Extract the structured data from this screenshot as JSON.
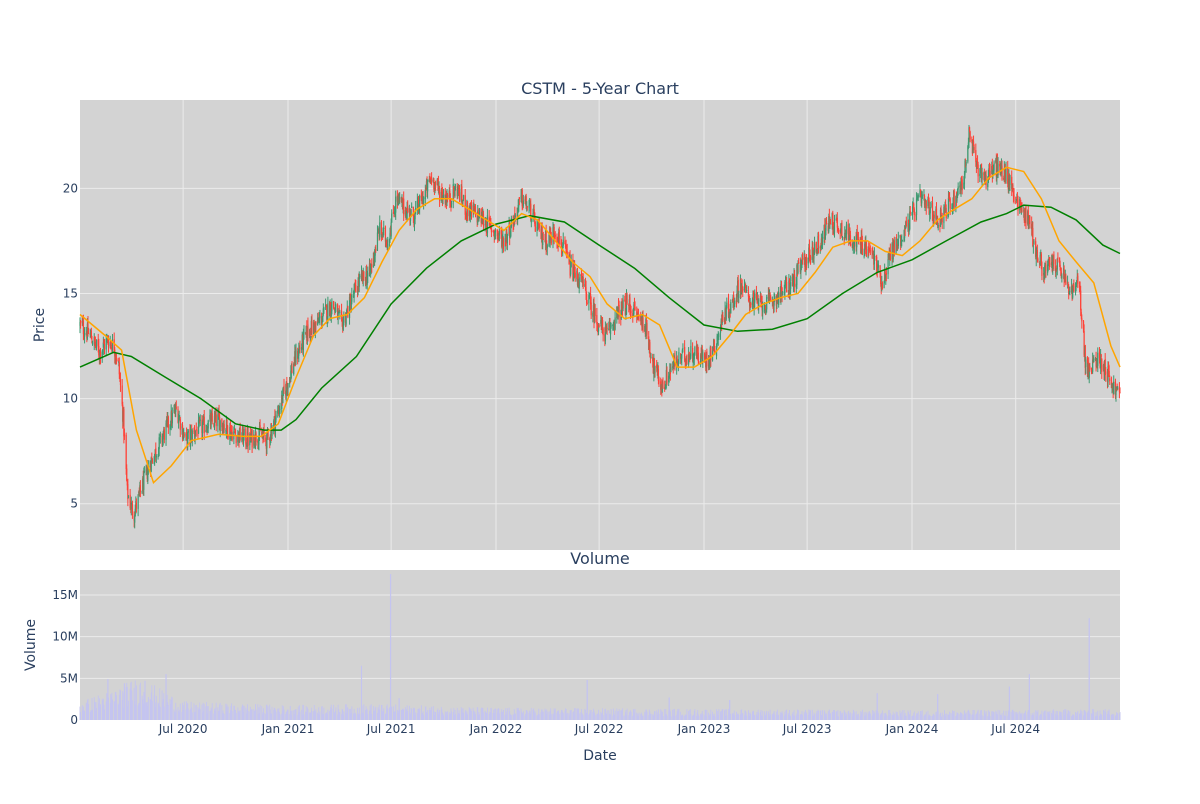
{
  "chart_data": [
    {
      "type": "candlestick",
      "title": "CSTM - 5-Year Chart",
      "ylabel": "Price",
      "ylim": [
        2.8,
        24.2
      ],
      "xlim": [
        "2020-01-02",
        "2024-12-31"
      ],
      "yticks": [
        5,
        10,
        15,
        20
      ],
      "xticks": [
        "2020-07-01",
        "2021-01-01",
        "2021-07-01",
        "2022-01-01",
        "2022-07-01",
        "2023-01-01",
        "2023-07-01",
        "2024-01-01",
        "2024-07-01"
      ],
      "grid": true,
      "colors": {
        "up": "#3d9970",
        "down": "#ff4136",
        "ma_short": "#ffa500",
        "ma_long": "#008000",
        "plot_bg": "#d3d3d3",
        "grid": "#ebebeb"
      },
      "price_path": {
        "x": [
          "2020-01-02",
          "2020-01-20",
          "2020-02-05",
          "2020-02-20",
          "2020-03-02",
          "2020-03-10",
          "2020-03-18",
          "2020-03-25",
          "2020-04-05",
          "2020-04-20",
          "2020-05-05",
          "2020-05-20",
          "2020-06-05",
          "2020-06-20",
          "2020-07-05",
          "2020-07-25",
          "2020-08-15",
          "2020-09-01",
          "2020-09-20",
          "2020-10-10",
          "2020-10-25",
          "2020-11-10",
          "2020-11-25",
          "2020-12-10",
          "2020-12-28",
          "2021-01-15",
          "2021-02-05",
          "2021-02-20",
          "2021-03-05",
          "2021-03-20",
          "2021-04-05",
          "2021-04-20",
          "2021-05-05",
          "2021-05-25",
          "2021-06-10",
          "2021-06-25",
          "2021-07-10",
          "2021-07-25",
          "2021-08-10",
          "2021-08-25",
          "2021-09-10",
          "2021-09-25",
          "2021-10-10",
          "2021-10-25",
          "2021-11-10",
          "2021-11-25",
          "2021-12-10",
          "2021-12-28",
          "2022-01-15",
          "2022-02-01",
          "2022-02-15",
          "2022-03-01",
          "2022-03-15",
          "2022-04-01",
          "2022-04-15",
          "2022-05-01",
          "2022-05-15",
          "2022-06-01",
          "2022-06-15",
          "2022-07-01",
          "2022-07-15",
          "2022-08-01",
          "2022-08-20",
          "2022-09-05",
          "2022-09-20",
          "2022-10-05",
          "2022-10-20",
          "2022-11-05",
          "2022-11-25",
          "2022-12-15",
          "2023-01-05",
          "2023-01-20",
          "2023-02-05",
          "2023-02-20",
          "2023-03-05",
          "2023-03-20",
          "2023-04-05",
          "2023-04-25",
          "2023-05-15",
          "2023-06-05",
          "2023-06-25",
          "2023-07-10",
          "2023-07-25",
          "2023-08-10",
          "2023-08-25",
          "2023-09-10",
          "2023-09-25",
          "2023-10-10",
          "2023-10-25",
          "2023-11-10",
          "2023-11-25",
          "2023-12-10",
          "2023-12-28",
          "2024-01-15",
          "2024-02-01",
          "2024-02-15",
          "2024-03-01",
          "2024-03-15",
          "2024-04-01",
          "2024-04-10",
          "2024-04-25",
          "2024-05-10",
          "2024-05-25",
          "2024-06-10",
          "2024-06-25",
          "2024-07-10",
          "2024-07-25",
          "2024-08-05",
          "2024-08-20",
          "2024-09-05",
          "2024-09-20",
          "2024-10-05",
          "2024-10-20",
          "2024-11-01",
          "2024-11-08",
          "2024-11-20",
          "2024-12-05",
          "2024-12-20",
          "2024-12-31"
        ],
        "y": [
          13.5,
          13.0,
          12.2,
          12.8,
          12.5,
          11.5,
          9.0,
          5.5,
          4.5,
          5.8,
          7.0,
          7.8,
          8.8,
          9.5,
          8.0,
          8.5,
          8.8,
          9.0,
          8.5,
          8.2,
          8.0,
          8.3,
          8.0,
          9.0,
          10.5,
          12.0,
          13.2,
          13.5,
          14.0,
          14.5,
          13.5,
          14.5,
          15.5,
          16.0,
          18.0,
          17.5,
          19.5,
          19.0,
          18.7,
          19.5,
          20.5,
          19.8,
          19.5,
          20.0,
          19.0,
          18.8,
          18.5,
          18.0,
          17.5,
          18.5,
          19.5,
          19.0,
          18.0,
          17.5,
          18.0,
          17.0,
          16.0,
          15.5,
          14.5,
          13.5,
          13.0,
          14.0,
          14.5,
          14.0,
          13.5,
          11.5,
          10.5,
          11.5,
          12.0,
          12.2,
          11.8,
          12.5,
          14.0,
          14.5,
          15.5,
          14.8,
          14.5,
          14.5,
          15.0,
          15.5,
          16.5,
          17.0,
          17.5,
          18.5,
          18.2,
          17.8,
          17.5,
          17.2,
          16.8,
          15.5,
          17.0,
          17.5,
          18.5,
          19.5,
          19.0,
          18.5,
          19.0,
          19.5,
          20.5,
          22.5,
          21.0,
          20.5,
          21.0,
          20.8,
          20.0,
          19.0,
          18.5,
          17.0,
          16.0,
          16.5,
          16.0,
          15.0,
          15.5,
          11.5,
          11.2,
          12.0,
          11.5,
          10.5,
          10.2
        ]
      },
      "ma_short": {
        "name": "",
        "x": [
          "2020-01-02",
          "2020-02-15",
          "2020-03-15",
          "2020-04-10",
          "2020-05-10",
          "2020-06-10",
          "2020-07-15",
          "2020-09-01",
          "2020-10-15",
          "2020-11-15",
          "2020-12-15",
          "2021-01-15",
          "2021-02-15",
          "2021-03-15",
          "2021-04-15",
          "2021-05-15",
          "2021-06-15",
          "2021-07-15",
          "2021-08-15",
          "2021-09-15",
          "2021-10-15",
          "2021-11-15",
          "2021-12-15",
          "2022-01-15",
          "2022-02-15",
          "2022-03-15",
          "2022-04-15",
          "2022-05-15",
          "2022-06-15",
          "2022-07-15",
          "2022-08-15",
          "2022-09-15",
          "2022-10-15",
          "2022-11-15",
          "2022-12-15",
          "2023-01-15",
          "2023-02-15",
          "2023-03-15",
          "2023-04-15",
          "2023-05-15",
          "2023-06-15",
          "2023-07-15",
          "2023-08-15",
          "2023-09-15",
          "2023-10-15",
          "2023-11-15",
          "2023-12-15",
          "2024-01-15",
          "2024-02-15",
          "2024-03-15",
          "2024-04-15",
          "2024-05-15",
          "2024-06-15",
          "2024-07-15",
          "2024-08-15",
          "2024-09-15",
          "2024-10-15",
          "2024-11-15",
          "2024-12-15",
          "2024-12-31"
        ],
        "y": [
          14.0,
          13.0,
          12.3,
          8.5,
          6.0,
          6.8,
          8.0,
          8.3,
          8.2,
          8.2,
          8.8,
          11.0,
          13.0,
          13.8,
          14.0,
          14.8,
          16.5,
          18.0,
          19.0,
          19.5,
          19.5,
          19.0,
          18.5,
          18.0,
          18.8,
          18.5,
          17.5,
          16.5,
          15.8,
          14.5,
          13.8,
          14.0,
          13.5,
          11.5,
          11.5,
          12.0,
          13.0,
          14.0,
          14.5,
          14.8,
          15.0,
          16.0,
          17.2,
          17.5,
          17.5,
          17.0,
          16.8,
          17.5,
          18.5,
          19.0,
          19.5,
          20.5,
          21.0,
          20.8,
          19.5,
          17.5,
          16.5,
          15.5,
          12.5,
          11.5
        ]
      },
      "ma_long": {
        "name": "",
        "x": [
          "2020-01-02",
          "2020-03-01",
          "2020-04-01",
          "2020-06-01",
          "2020-08-01",
          "2020-10-01",
          "2020-11-20",
          "2020-12-20",
          "2021-01-15",
          "2021-03-01",
          "2021-05-01",
          "2021-07-01",
          "2021-09-01",
          "2021-11-01",
          "2022-01-01",
          "2022-03-01",
          "2022-05-01",
          "2022-07-01",
          "2022-09-01",
          "2022-11-01",
          "2023-01-01",
          "2023-03-01",
          "2023-05-01",
          "2023-07-01",
          "2023-09-01",
          "2023-11-01",
          "2024-01-01",
          "2024-03-01",
          "2024-05-01",
          "2024-06-15",
          "2024-07-15",
          "2024-09-01",
          "2024-10-15",
          "2024-12-01",
          "2024-12-31"
        ],
        "y": [
          11.5,
          12.2,
          12.0,
          11.0,
          10.0,
          8.8,
          8.5,
          8.5,
          9.0,
          10.5,
          12.0,
          14.5,
          16.2,
          17.5,
          18.3,
          18.7,
          18.4,
          17.3,
          16.2,
          14.8,
          13.5,
          13.2,
          13.3,
          13.8,
          15.0,
          16.0,
          16.6,
          17.5,
          18.4,
          18.8,
          19.2,
          19.1,
          18.5,
          17.3,
          16.9
        ]
      }
    },
    {
      "type": "bar",
      "title": "Volume",
      "xlabel": "Date",
      "ylabel": "Volume",
      "ylim": [
        0,
        18000000
      ],
      "ytick_labels": [
        "0",
        "5M",
        "10M",
        "15M"
      ],
      "xtick_labels": [
        "Jul 2020",
        "Jan 2021",
        "Jul 2021",
        "Jan 2022",
        "Jul 2022",
        "Jan 2023",
        "Jul 2023",
        "Jan 2024",
        "Jul 2024"
      ],
      "grid": true,
      "colors": {
        "bar": "#c4c4f0",
        "plot_bg": "#d3d3d3"
      },
      "baseline": {
        "x": [
          "2020-01-02",
          "2020-03-01",
          "2020-04-15",
          "2020-07-01",
          "2021-01-01",
          "2021-06-01",
          "2022-01-01",
          "2023-01-01",
          "2024-01-01",
          "2024-12-31"
        ],
        "y": [
          1500000,
          2500000,
          3500000,
          1500000,
          1200000,
          1300000,
          1000000,
          900000,
          800000,
          900000
        ]
      },
      "spikes": [
        {
          "x": "2020-02-20",
          "value": 4900000
        },
        {
          "x": "2020-03-20",
          "value": 4400000
        },
        {
          "x": "2020-04-25",
          "value": 4700000
        },
        {
          "x": "2020-06-01",
          "value": 5500000
        },
        {
          "x": "2021-05-10",
          "value": 6500000
        },
        {
          "x": "2021-06-30",
          "value": 17500000
        },
        {
          "x": "2021-07-15",
          "value": 2600000
        },
        {
          "x": "2022-06-10",
          "value": 4800000
        },
        {
          "x": "2022-11-01",
          "value": 2700000
        },
        {
          "x": "2023-02-15",
          "value": 2400000
        },
        {
          "x": "2023-11-01",
          "value": 3200000
        },
        {
          "x": "2024-02-15",
          "value": 3100000
        },
        {
          "x": "2024-06-20",
          "value": 4000000
        },
        {
          "x": "2024-07-25",
          "value": 5500000
        },
        {
          "x": "2024-11-07",
          "value": 12200000
        }
      ]
    }
  ]
}
